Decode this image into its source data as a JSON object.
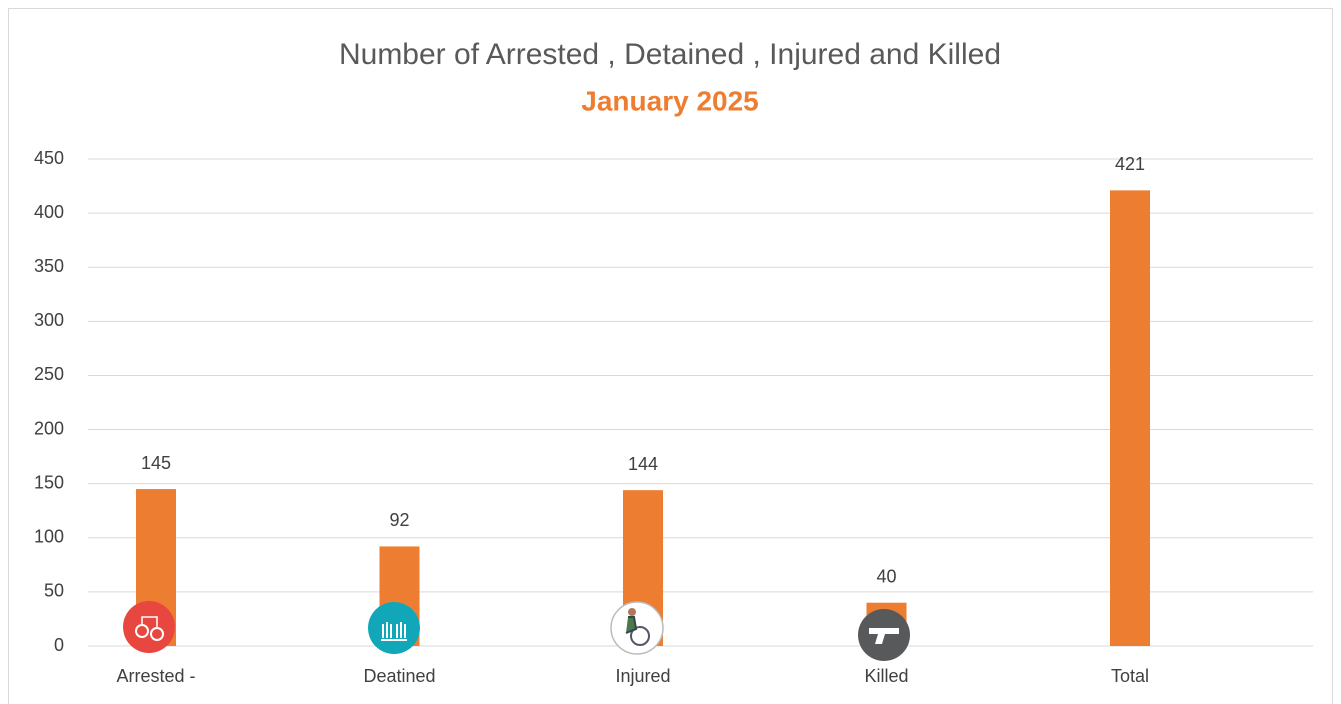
{
  "chart_data": {
    "type": "bar",
    "title": "Number of Arrested , Detained , Injured and Killed",
    "subtitle": "January 2025",
    "categories": [
      "Arrested -",
      "Deatined",
      "Injured",
      "Killed",
      "Total"
    ],
    "values": [
      145,
      92,
      144,
      40,
      421
    ],
    "color": "#ed7d31",
    "ylim": [
      0,
      450
    ],
    "yticks": [
      0,
      50,
      100,
      150,
      200,
      250,
      300,
      350,
      400,
      450
    ],
    "grid": true
  }
}
